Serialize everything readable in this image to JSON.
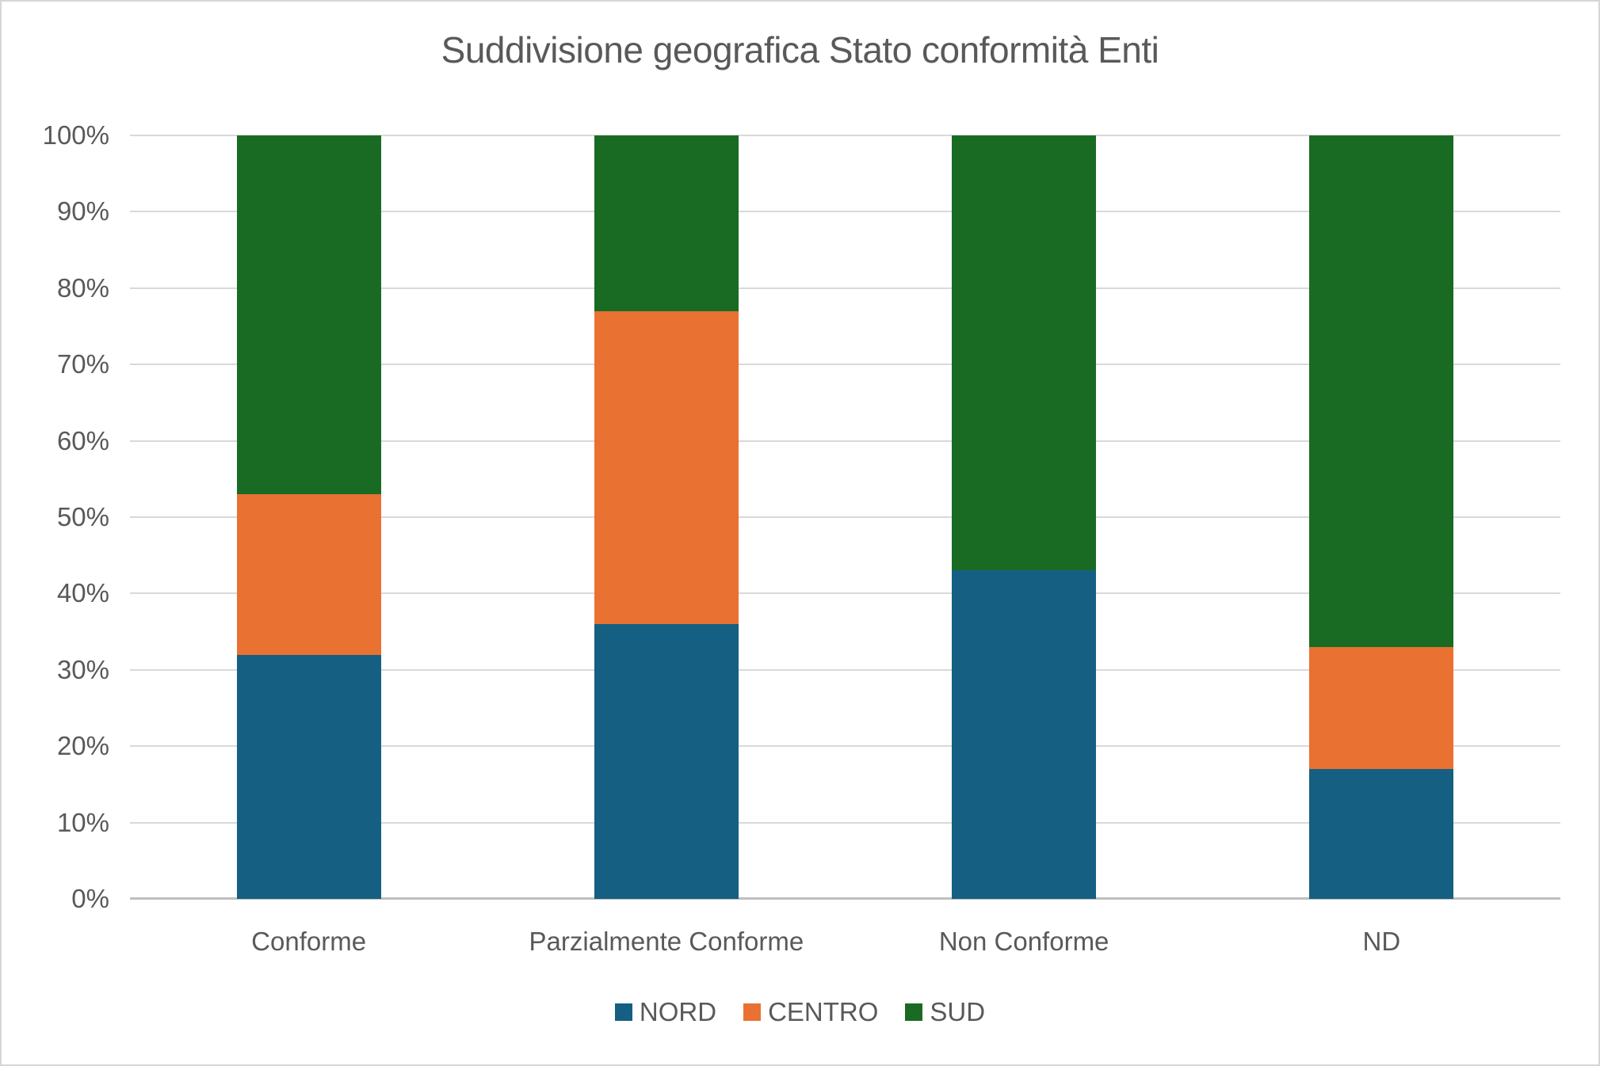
{
  "title": "Suddivisione geografica Stato conformità Enti",
  "chart_data": {
    "type": "bar",
    "variant": "100%-stacked-column",
    "title": "Suddivisione geografica Stato conformità Enti",
    "categories": [
      "Conforme",
      "Parzialmente Conforme",
      "Non Conforme",
      "ND"
    ],
    "series": [
      {
        "name": "NORD",
        "color": "#156082",
        "values": [
          32,
          36,
          43,
          17
        ]
      },
      {
        "name": "CENTRO",
        "color": "#E97132",
        "values": [
          21,
          41,
          0,
          16
        ]
      },
      {
        "name": "SUD",
        "color": "#196B24",
        "values": [
          47,
          23,
          57,
          67
        ]
      }
    ],
    "xlabel": "",
    "ylabel": "",
    "ylim": [
      0,
      100
    ],
    "y_ticks": [
      "0%",
      "10%",
      "20%",
      "30%",
      "40%",
      "50%",
      "60%",
      "70%",
      "80%",
      "90%",
      "100%"
    ],
    "grid": true,
    "legend_position": "bottom"
  },
  "colors": {
    "text": "#595959",
    "gridline": "#D9D9D9",
    "axis_line": "#BFBFBF",
    "background": "#FFFFFF",
    "canvas_border": "#D6D6D6"
  }
}
